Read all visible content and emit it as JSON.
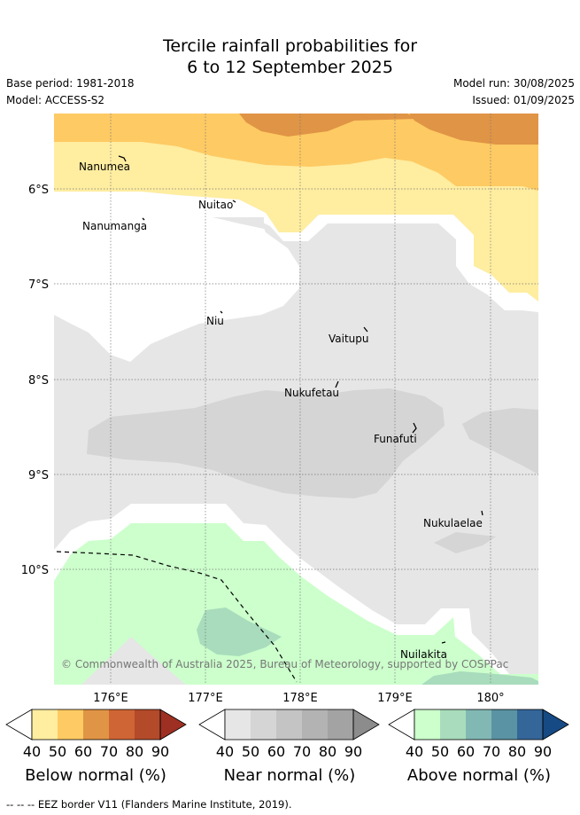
{
  "title": {
    "line1": "Tercile rainfall probabilities for",
    "line2": "6 to 12 September 2025"
  },
  "meta": {
    "base_period": "Base period: 1981-2018",
    "model": "Model: ACCESS-S2",
    "model_run": "Model run: 30/08/2025",
    "issued": "Issued: 01/09/2025"
  },
  "map": {
    "lat_labels": [
      "6°S",
      "7°S",
      "8°S",
      "9°S",
      "10°S"
    ],
    "lon_labels": [
      "176°E",
      "177°E",
      "178°E",
      "179°E",
      "180°"
    ],
    "places": [
      "Nanumea",
      "Nuitao",
      "Nanumanga",
      "Niu",
      "Vaitupu",
      "Nukufetau",
      "Funafuti",
      "Nukulaelae",
      "Nuilakita"
    ],
    "copyright": "© Commonwealth of Australia 2025, Bureau of Meteorology, supported by COSPPac"
  },
  "colorbars": [
    {
      "label": "Below normal (%)",
      "ticks": [
        "40",
        "50",
        "60",
        "70",
        "80",
        "90"
      ],
      "colors": [
        "#ffeda0",
        "#feca63",
        "#e09445",
        "#cf6535",
        "#b34a2a",
        "#9e3023"
      ]
    },
    {
      "label": "Near normal (%)",
      "ticks": [
        "40",
        "50",
        "60",
        "70",
        "80",
        "90"
      ],
      "colors": [
        "#e6e6e6",
        "#d5d5d5",
        "#c4c4c4",
        "#b3b3b3",
        "#a3a3a3",
        "#8c8c8c"
      ]
    },
    {
      "label": "Above normal (%)",
      "ticks": [
        "40",
        "50",
        "60",
        "70",
        "80",
        "90"
      ],
      "colors": [
        "#ccffcc",
        "#a8dcbc",
        "#82b8b4",
        "#5a93a3",
        "#346699",
        "#164a84"
      ]
    }
  ],
  "footer": {
    "eez": "-- -- -- EEZ border V11 (Flanders Marine Institute, 2019)."
  }
}
